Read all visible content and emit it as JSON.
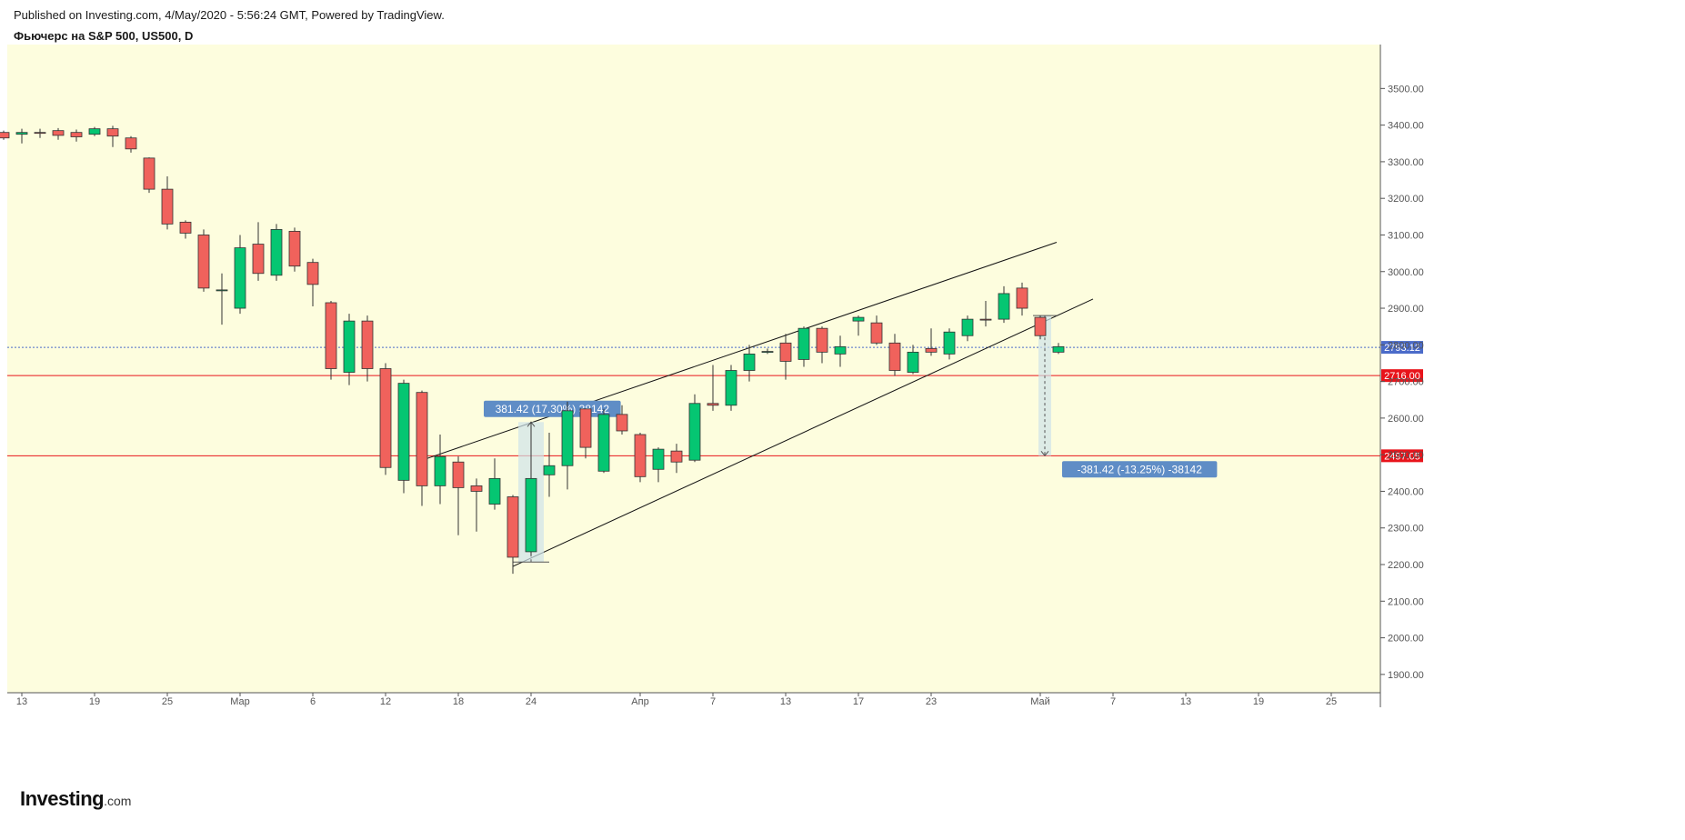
{
  "header": {
    "published": "Published on Investing.com, 4/May/2020 - 5:56:24 GMT, Powered by TradingView.",
    "symbol": "Фьючерс на S&P 500, US500, D"
  },
  "logo": {
    "name": "Investing",
    "suffix": ".com"
  },
  "colors": {
    "background": "#fdfdde",
    "up": "#05c672",
    "down": "#f0625c",
    "candle_border": "#333333",
    "hline": "#e8141b",
    "last_price": "#4b6bc9",
    "measure_box": "#5f8dc6"
  },
  "chart_data": {
    "type": "candlestick",
    "ylim": [
      1850,
      3620
    ],
    "y_ticks": [
      1900,
      2000,
      2100,
      2200,
      2300,
      2400,
      2500,
      2600,
      2700,
      2800,
      2900,
      3000,
      3100,
      3200,
      3300,
      3400,
      3500
    ],
    "y_tick_labels": [
      "1900.00",
      "2000.00",
      "2100.00",
      "2200.00",
      "2300.00",
      "2400.00",
      "2500.00",
      "2600.00",
      "2700.00",
      "2800.00",
      "2900.00",
      "3000.00",
      "3100.00",
      "3200.00",
      "3300.00",
      "3400.00",
      "3500.00"
    ],
    "x_ticks": [
      {
        "label": "13",
        "bar": 0
      },
      {
        "label": "19",
        "bar": 4
      },
      {
        "label": "25",
        "bar": 8
      },
      {
        "label": "Мар",
        "bar": 12
      },
      {
        "label": "6",
        "bar": 16
      },
      {
        "label": "12",
        "bar": 20
      },
      {
        "label": "18",
        "bar": 24
      },
      {
        "label": "24",
        "bar": 28
      },
      {
        "label": "Апр",
        "bar": 34
      },
      {
        "label": "7",
        "bar": 38
      },
      {
        "label": "13",
        "bar": 42
      },
      {
        "label": "17",
        "bar": 46
      },
      {
        "label": "23",
        "bar": 50
      },
      {
        "label": "Май",
        "bar": 56
      },
      {
        "label": "7",
        "bar": 60
      },
      {
        "label": "13",
        "bar": 64
      },
      {
        "label": "19",
        "bar": 68
      },
      {
        "label": "25",
        "bar": 72
      }
    ],
    "candles": [
      [
        -1,
        3380,
        3385,
        3360,
        3365
      ],
      [
        0,
        3375,
        3390,
        3350,
        3380
      ],
      [
        1,
        3380,
        3390,
        3365,
        3378
      ],
      [
        2,
        3385,
        3392,
        3360,
        3372
      ],
      [
        3,
        3380,
        3388,
        3355,
        3368
      ],
      [
        4,
        3375,
        3395,
        3370,
        3390
      ],
      [
        5,
        3390,
        3398,
        3340,
        3370
      ],
      [
        6,
        3365,
        3370,
        3325,
        3335
      ],
      [
        7,
        3310,
        3312,
        3215,
        3225
      ],
      [
        8,
        3225,
        3260,
        3115,
        3130
      ],
      [
        9,
        3135,
        3140,
        3090,
        3105
      ],
      [
        10,
        3100,
        3115,
        2945,
        2955
      ],
      [
        11,
        2950,
        2995,
        2855,
        2950
      ],
      [
        12,
        2900,
        3100,
        2885,
        3065
      ],
      [
        13,
        3075,
        3135,
        2975,
        2995
      ],
      [
        14,
        2990,
        3130,
        2975,
        3115
      ],
      [
        15,
        3110,
        3120,
        3000,
        3015
      ],
      [
        16,
        3025,
        3035,
        2905,
        2965
      ],
      [
        17,
        2915,
        2920,
        2705,
        2735
      ],
      [
        18,
        2725,
        2885,
        2690,
        2865
      ],
      [
        19,
        2865,
        2880,
        2700,
        2735
      ],
      [
        20,
        2735,
        2750,
        2445,
        2465
      ],
      [
        21,
        2430,
        2705,
        2395,
        2695
      ],
      [
        22,
        2670,
        2675,
        2360,
        2415
      ],
      [
        23,
        2415,
        2555,
        2365,
        2495
      ],
      [
        24,
        2480,
        2495,
        2280,
        2410
      ],
      [
        25,
        2415,
        2435,
        2290,
        2400
      ],
      [
        26,
        2365,
        2490,
        2350,
        2435
      ],
      [
        27,
        2385,
        2390,
        2175,
        2220
      ],
      [
        28,
        2235,
        2590,
        2225,
        2435
      ],
      [
        29,
        2445,
        2560,
        2385,
        2470
      ],
      [
        30,
        2470,
        2645,
        2405,
        2620
      ],
      [
        31,
        2625,
        2625,
        2490,
        2520
      ],
      [
        32,
        2455,
        2625,
        2450,
        2610
      ],
      [
        33,
        2610,
        2635,
        2555,
        2565
      ],
      [
        34,
        2555,
        2560,
        2425,
        2440
      ],
      [
        35,
        2460,
        2520,
        2425,
        2515
      ],
      [
        36,
        2510,
        2530,
        2450,
        2480
      ],
      [
        37,
        2485,
        2665,
        2480,
        2640
      ],
      [
        38,
        2640,
        2745,
        2620,
        2635
      ],
      [
        39,
        2635,
        2745,
        2620,
        2730
      ],
      [
        40,
        2730,
        2800,
        2700,
        2775
      ],
      [
        41,
        2780,
        2790,
        2775,
        2782
      ],
      [
        42,
        2805,
        2830,
        2705,
        2755
      ],
      [
        43,
        2760,
        2850,
        2740,
        2845
      ],
      [
        44,
        2845,
        2850,
        2750,
        2780
      ],
      [
        45,
        2775,
        2825,
        2740,
        2795
      ],
      [
        46,
        2865,
        2880,
        2825,
        2875
      ],
      [
        47,
        2860,
        2880,
        2800,
        2805
      ],
      [
        48,
        2805,
        2830,
        2715,
        2730
      ],
      [
        49,
        2725,
        2800,
        2720,
        2780
      ],
      [
        50,
        2790,
        2845,
        2770,
        2780
      ],
      [
        51,
        2775,
        2845,
        2760,
        2835
      ],
      [
        52,
        2825,
        2880,
        2810,
        2870
      ],
      [
        53,
        2870,
        2920,
        2850,
        2868
      ],
      [
        54,
        2870,
        2960,
        2860,
        2940
      ],
      [
        55,
        2955,
        2970,
        2880,
        2900
      ],
      [
        56,
        2875,
        2880,
        2815,
        2825
      ],
      [
        57,
        2780,
        2805,
        2775,
        2795
      ]
    ],
    "price_lines": [
      {
        "value": 2793.12,
        "label": "2793.12",
        "style": "dotted",
        "color": "#4b6bc9"
      },
      {
        "value": 2716.0,
        "label": "2716.00",
        "style": "solid",
        "color": "#e8141b"
      },
      {
        "value": 2497.05,
        "label": "2497.05",
        "style": "solid",
        "color": "#e8141b"
      }
    ],
    "trend_lines": [
      {
        "from": [
          22.3,
          2490
        ],
        "to": [
          56.9,
          3080
        ]
      },
      {
        "from": [
          27.0,
          2195
        ],
        "to": [
          58.9,
          2925
        ]
      }
    ],
    "measurements": [
      {
        "label": "381.42 (17.30%) 38142",
        "x_from": 27.5,
        "x_to": 28.5,
        "p_from": 2207,
        "p_to": 2589,
        "dir": "up",
        "label_at": 2625,
        "label_bar": 25.4
      },
      {
        "label": "-381.42 (-13.25%) -38142",
        "x_from": 56.1,
        "x_to": 56.4,
        "p_from": 2880,
        "p_to": 2497,
        "dir": "down",
        "label_at": 2460,
        "label_bar": 57.2
      }
    ]
  }
}
